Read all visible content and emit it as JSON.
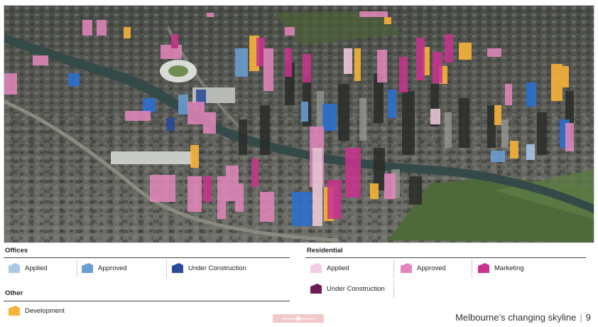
{
  "colors": {
    "offices_applied": "#a9c8e6",
    "offices_approved": "#6a9fd3",
    "offices_under_construction": "#2b4a9a",
    "residential_applied": "#f6cde0",
    "residential_approved": "#e487bd",
    "residential_marketing": "#c9338f",
    "residential_under_construction": "#6d1a55",
    "other_development": "#f6b23a"
  },
  "legend": {
    "offices": {
      "title": "Offices",
      "items": [
        {
          "label": "Applied",
          "icon": "offices-applied-swatch"
        },
        {
          "label": "Approved",
          "icon": "offices-approved-swatch"
        },
        {
          "label": "Under Construction",
          "icon": "offices-under-construction-swatch"
        }
      ]
    },
    "residential": {
      "title": "Residential",
      "items": [
        {
          "label": "Applied",
          "icon": "residential-applied-swatch"
        },
        {
          "label": "Approved",
          "icon": "residential-approved-swatch"
        },
        {
          "label": "Marketing",
          "icon": "residential-marketing-swatch"
        },
        {
          "label": "Under Construction",
          "icon": "residential-under-construction-swatch"
        }
      ]
    },
    "other": {
      "title": "Other",
      "items": [
        {
          "label": "Development",
          "icon": "other-development-swatch"
        }
      ]
    }
  },
  "footer": {
    "title": "Melbourne’s changing skyline",
    "separator": "|",
    "page_number": "9"
  }
}
